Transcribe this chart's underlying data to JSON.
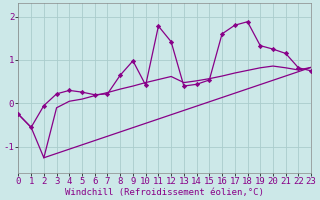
{
  "xlabel": "Windchill (Refroidissement éolien,°C)",
  "background_color": "#cce8e8",
  "grid_color": "#aacccc",
  "line_color": "#880088",
  "xlim": [
    0,
    23
  ],
  "ylim": [
    -1.6,
    2.3
  ],
  "yticks": [
    -1,
    0,
    1,
    2
  ],
  "xticks": [
    0,
    1,
    2,
    3,
    4,
    5,
    6,
    7,
    8,
    9,
    10,
    11,
    12,
    13,
    14,
    15,
    16,
    17,
    18,
    19,
    20,
    21,
    22,
    23
  ],
  "line1_x": [
    0,
    1,
    2,
    3,
    4,
    5,
    6,
    7,
    8,
    9,
    10,
    11,
    12,
    13,
    14,
    15,
    16,
    17,
    18,
    19,
    20,
    21,
    22,
    23
  ],
  "line1_y": [
    -0.25,
    -0.55,
    -0.05,
    0.22,
    0.3,
    0.26,
    0.2,
    0.22,
    0.65,
    0.98,
    0.42,
    1.78,
    1.42,
    0.4,
    0.44,
    0.54,
    1.6,
    1.8,
    1.88,
    1.33,
    1.25,
    1.15,
    0.82,
    0.75
  ],
  "line2_x": [
    0,
    1,
    2,
    3,
    4,
    5,
    6,
    7,
    8,
    9,
    10,
    11,
    12,
    13,
    14,
    15,
    16,
    17,
    18,
    19,
    20,
    21,
    22,
    23
  ],
  "line2_y": [
    -0.25,
    -0.55,
    -1.25,
    -0.1,
    0.05,
    0.1,
    0.18,
    0.25,
    0.33,
    0.4,
    0.48,
    0.55,
    0.62,
    0.48,
    0.52,
    0.57,
    0.63,
    0.7,
    0.76,
    0.82,
    0.86,
    0.82,
    0.77,
    0.83
  ],
  "line3_x": [
    2,
    23
  ],
  "line3_y": [
    -1.25,
    0.83
  ]
}
